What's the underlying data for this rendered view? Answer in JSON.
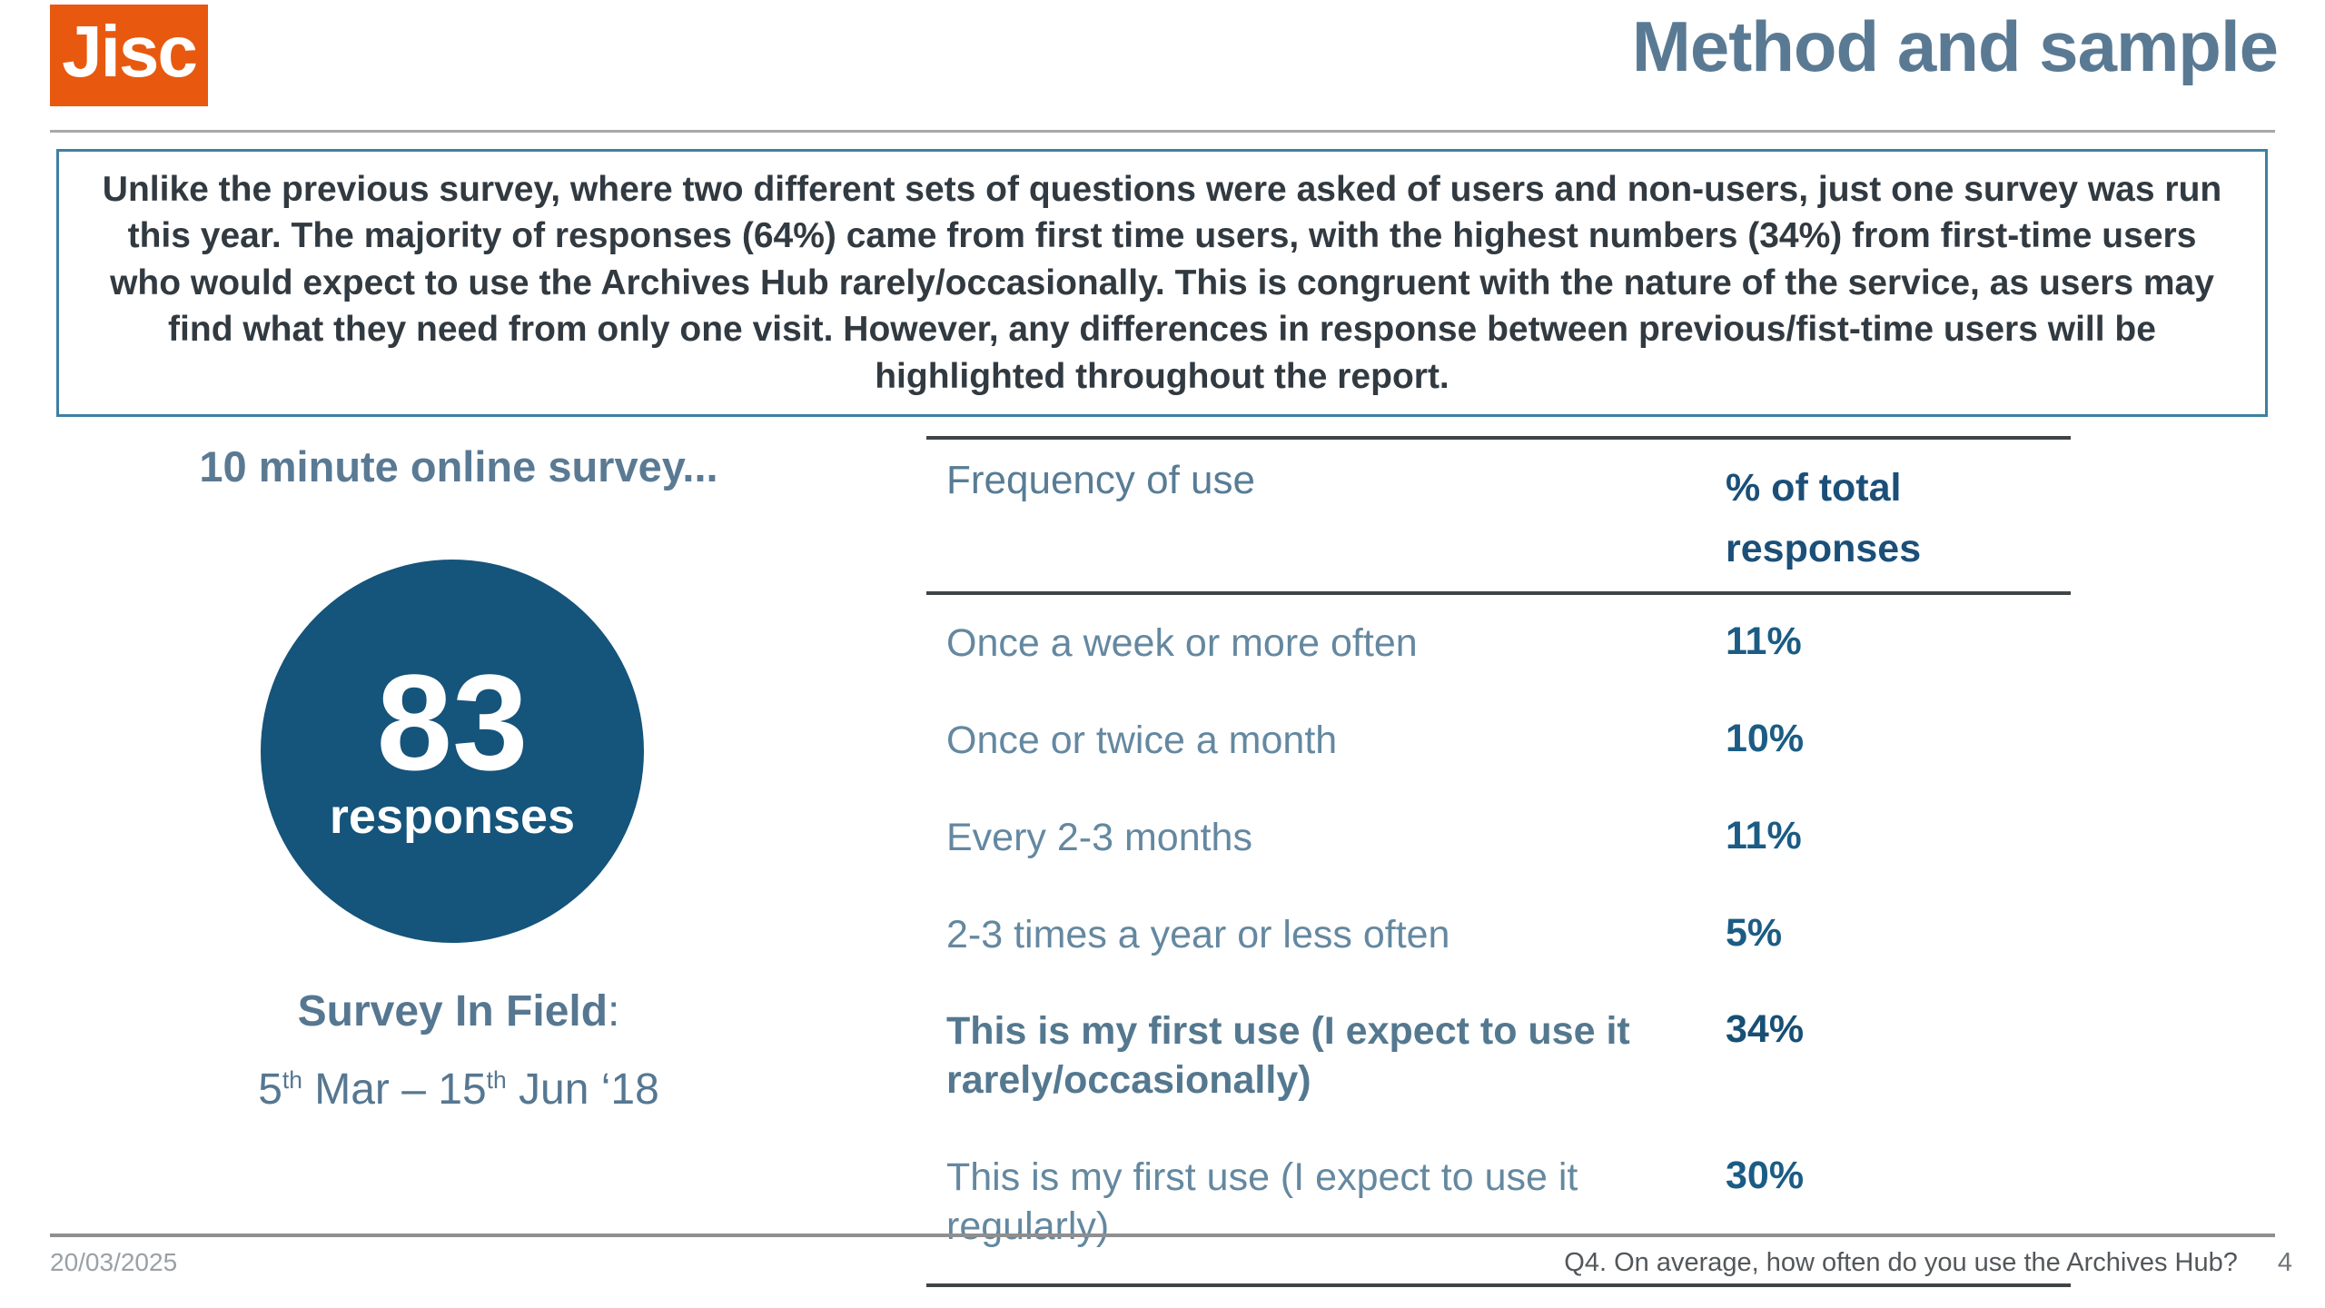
{
  "logo": {
    "text": "Jisc"
  },
  "header": {
    "title": "Method and sample"
  },
  "intro": {
    "text": "Unlike the previous survey, where two different sets of questions were asked of users and non-users, just one survey was run this year.  The majority of responses (64%) came from first time users, with the highest numbers (34%) from first-time users who would expect to use the Archives Hub rarely/occasionally. This is congruent with the nature of the service, as users may find what they need from only one visit.  However, any differences in response between previous/fist-time users will be highlighted throughout the report."
  },
  "left": {
    "heading": "10 minute online survey...",
    "circle": {
      "number": "83",
      "label": "responses"
    },
    "field": {
      "label": "Survey In Field",
      "colon": ":"
    },
    "dates": {
      "day1": "5",
      "ord1": "th",
      "mid": " Mar – 15",
      "ord2": "th",
      "tail": " Jun ‘18"
    }
  },
  "table": {
    "headers": {
      "col1": "Frequency of use",
      "col2": "% of total responses"
    },
    "rows": [
      {
        "label": "Once a week or more often",
        "value": "11%"
      },
      {
        "label": "Once or twice a month",
        "value": "10%"
      },
      {
        "label": "Every 2-3 months",
        "value": "11%"
      },
      {
        "label": "2-3 times a year or less often",
        "value": "5%"
      },
      {
        "label": "This is my first use (I expect to use it rarely/occasionally)",
        "value": "34%"
      },
      {
        "label": "This is my first use (I expect to use it regularly)",
        "value": "30%"
      }
    ]
  },
  "footer": {
    "date": "20/03/2025",
    "question": "Q4. On average, how often do you use the Archives Hub?",
    "page": "4"
  },
  "colors": {
    "logo_orange": "#e8590f",
    "title_steel_blue": "#5a7a94",
    "circle_blue": "#15547b",
    "row_label_blue": "#6488a0",
    "value_dark_blue": "#1b5c85",
    "header_dark_blue": "#1b4f78",
    "intro_border_teal": "#3e80a3",
    "intro_text": "#323a41",
    "rule_gray": "#a8a8a8",
    "table_rule_dark": "#3f4447"
  }
}
